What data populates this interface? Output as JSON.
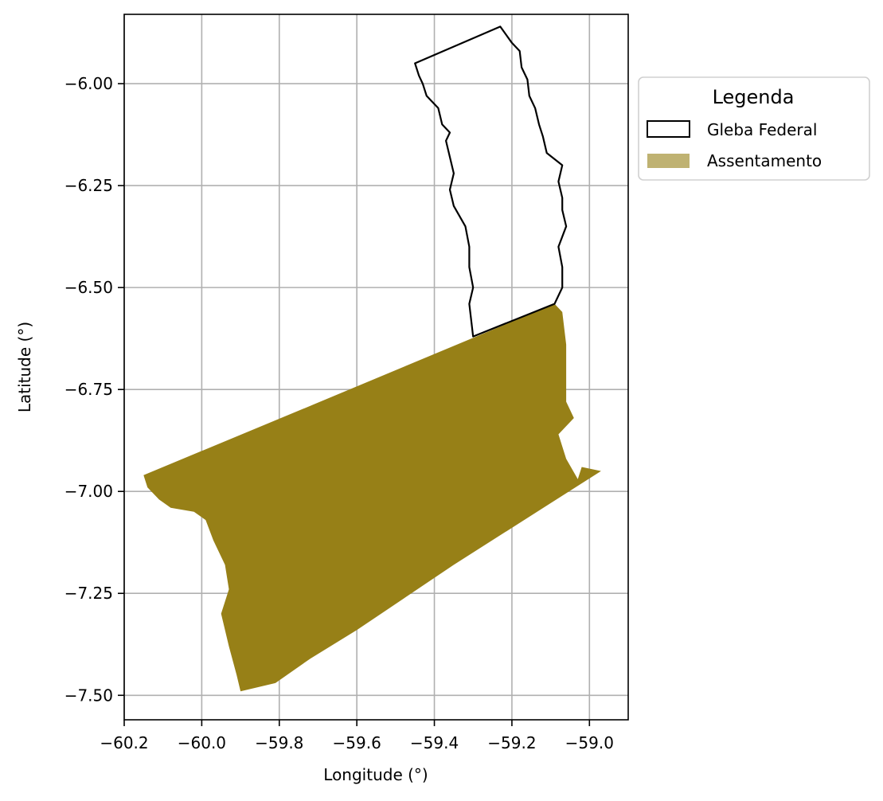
{
  "chart_data": {
    "type": "map",
    "xlabel": "Longitude (°)",
    "ylabel": "Latitude (°)",
    "xlim": [
      -60.2,
      -58.9
    ],
    "ylim": [
      -7.56,
      -5.83
    ],
    "grid": true,
    "x_ticks": [
      {
        "value": -60.2,
        "label": "−60.2"
      },
      {
        "value": -60.0,
        "label": "−60.0"
      },
      {
        "value": -59.8,
        "label": "−59.8"
      },
      {
        "value": -59.6,
        "label": "−59.6"
      },
      {
        "value": -59.4,
        "label": "−59.4"
      },
      {
        "value": -59.2,
        "label": "−59.2"
      },
      {
        "value": -59.0,
        "label": "−59.0"
      }
    ],
    "y_ticks": [
      {
        "value": -6.0,
        "label": "−6.00"
      },
      {
        "value": -6.25,
        "label": "−6.25"
      },
      {
        "value": -6.5,
        "label": "−6.50"
      },
      {
        "value": -6.75,
        "label": "−6.75"
      },
      {
        "value": -7.0,
        "label": "−7.00"
      },
      {
        "value": -7.25,
        "label": "−7.25"
      },
      {
        "value": -7.5,
        "label": "−7.50"
      }
    ],
    "legend": {
      "title": "Legenda",
      "placement": "outside-upper-right",
      "entries": [
        {
          "label": "Gleba Federal",
          "style": "outline",
          "color": "#000000"
        },
        {
          "label": "Assentamento",
          "style": "fill",
          "color": "#bfb272"
        }
      ]
    },
    "layers": [
      {
        "name": "Gleba Federal",
        "style": "outline",
        "stroke": "#000000",
        "fill": "none",
        "coords": [
          [
            -59.23,
            -5.86
          ],
          [
            -59.2,
            -5.9
          ],
          [
            -59.18,
            -5.92
          ],
          [
            -59.175,
            -5.96
          ],
          [
            -59.16,
            -5.99
          ],
          [
            -59.155,
            -6.03
          ],
          [
            -59.14,
            -6.06
          ],
          [
            -59.13,
            -6.1
          ],
          [
            -59.12,
            -6.13
          ],
          [
            -59.11,
            -6.17
          ],
          [
            -59.07,
            -6.2
          ],
          [
            -59.08,
            -6.24
          ],
          [
            -59.07,
            -6.28
          ],
          [
            -59.07,
            -6.31
          ],
          [
            -59.06,
            -6.35
          ],
          [
            -59.08,
            -6.4
          ],
          [
            -59.07,
            -6.45
          ],
          [
            -59.07,
            -6.5
          ],
          [
            -59.09,
            -6.54
          ],
          [
            -59.3,
            -6.62
          ],
          [
            -59.305,
            -6.58
          ],
          [
            -59.31,
            -6.54
          ],
          [
            -59.3,
            -6.5
          ],
          [
            -59.31,
            -6.45
          ],
          [
            -59.31,
            -6.4
          ],
          [
            -59.32,
            -6.35
          ],
          [
            -59.35,
            -6.3
          ],
          [
            -59.36,
            -6.26
          ],
          [
            -59.35,
            -6.22
          ],
          [
            -59.36,
            -6.18
          ],
          [
            -59.37,
            -6.14
          ],
          [
            -59.36,
            -6.12
          ],
          [
            -59.38,
            -6.1
          ],
          [
            -59.39,
            -6.06
          ],
          [
            -59.42,
            -6.03
          ],
          [
            -59.43,
            -6.0
          ],
          [
            -59.44,
            -5.98
          ],
          [
            -59.45,
            -5.95
          ],
          [
            -59.23,
            -5.86
          ]
        ]
      },
      {
        "name": "Assentamento",
        "style": "fill",
        "fill": "#978017",
        "coords": [
          [
            -60.15,
            -6.96
          ],
          [
            -59.72,
            -6.79
          ],
          [
            -59.09,
            -6.54
          ],
          [
            -59.07,
            -6.56
          ],
          [
            -59.06,
            -6.64
          ],
          [
            -59.06,
            -6.72
          ],
          [
            -59.06,
            -6.78
          ],
          [
            -59.04,
            -6.82
          ],
          [
            -59.08,
            -6.86
          ],
          [
            -59.06,
            -6.92
          ],
          [
            -59.03,
            -6.97
          ],
          [
            -59.02,
            -6.94
          ],
          [
            -58.97,
            -6.95
          ],
          [
            -59.35,
            -7.18
          ],
          [
            -59.6,
            -7.34
          ],
          [
            -59.72,
            -7.41
          ],
          [
            -59.81,
            -7.47
          ],
          [
            -59.9,
            -7.49
          ],
          [
            -59.91,
            -7.45
          ],
          [
            -59.93,
            -7.38
          ],
          [
            -59.95,
            -7.3
          ],
          [
            -59.93,
            -7.24
          ],
          [
            -59.94,
            -7.18
          ],
          [
            -59.97,
            -7.12
          ],
          [
            -59.99,
            -7.07
          ],
          [
            -60.02,
            -7.05
          ],
          [
            -60.08,
            -7.04
          ],
          [
            -60.11,
            -7.02
          ],
          [
            -60.14,
            -6.99
          ],
          [
            -60.15,
            -6.96
          ]
        ]
      }
    ]
  }
}
